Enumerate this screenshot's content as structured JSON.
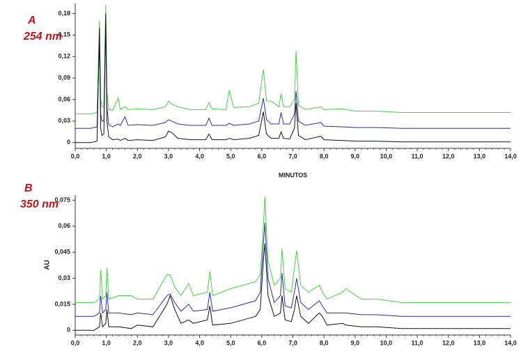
{
  "chart_data": [
    {
      "type": "line",
      "title": "A",
      "subtitle": "254 nm",
      "xlabel": "MINUTOS",
      "x": [
        0,
        0.5,
        0.7,
        0.78,
        0.82,
        0.86,
        0.92,
        0.98,
        1.02,
        1.08,
        1.2,
        1.38,
        1.45,
        1.6,
        1.7,
        2.0,
        2.5,
        2.9,
        3.0,
        3.1,
        3.3,
        3.7,
        4.2,
        4.3,
        4.4,
        4.85,
        4.95,
        5.1,
        5.6,
        5.9,
        6.05,
        6.15,
        6.3,
        6.55,
        6.62,
        6.7,
        6.9,
        7.05,
        7.1,
        7.18,
        7.4,
        7.9,
        8.0,
        8.6,
        9.0,
        9.7,
        10.5,
        12,
        14
      ],
      "series": [
        {
          "color": "#44d044",
          "values": [
            0.04,
            0.04,
            0.042,
            0.17,
            0.06,
            0.05,
            0.05,
            0.192,
            0.07,
            0.046,
            0.045,
            0.062,
            0.046,
            0.05,
            0.046,
            0.047,
            0.046,
            0.05,
            0.058,
            0.054,
            0.05,
            0.046,
            0.046,
            0.056,
            0.047,
            0.046,
            0.073,
            0.049,
            0.05,
            0.055,
            0.102,
            0.058,
            0.058,
            0.05,
            0.068,
            0.05,
            0.05,
            0.06,
            0.128,
            0.052,
            0.046,
            0.05,
            0.046,
            0.047,
            0.044,
            0.044,
            0.042,
            0.042,
            0.042
          ]
        },
        {
          "color": "#2b2ba6",
          "values": [
            0.02,
            0.02,
            0.022,
            0.14,
            0.04,
            0.03,
            0.03,
            0.16,
            0.05,
            0.025,
            0.022,
            0.026,
            0.024,
            0.036,
            0.024,
            0.025,
            0.024,
            0.028,
            0.032,
            0.03,
            0.026,
            0.024,
            0.024,
            0.034,
            0.024,
            0.024,
            0.027,
            0.024,
            0.026,
            0.03,
            0.062,
            0.032,
            0.026,
            0.026,
            0.042,
            0.026,
            0.026,
            0.04,
            0.072,
            0.03,
            0.024,
            0.028,
            0.023,
            0.022,
            0.021,
            0.021,
            0.02,
            0.02,
            0.02
          ]
        },
        {
          "color": "#111111",
          "values": [
            0,
            0,
            0.002,
            0.16,
            0.02,
            0.01,
            0.012,
            0.18,
            0.03,
            0.008,
            0.004,
            0.005,
            0.003,
            0.006,
            0.003,
            0.004,
            0.003,
            0.008,
            0.016,
            0.014,
            0.006,
            0.004,
            0.004,
            0.012,
            0.004,
            0.004,
            0.006,
            0.004,
            0.006,
            0.01,
            0.043,
            0.012,
            0.006,
            0.006,
            0.015,
            0.006,
            0.005,
            0.02,
            0.055,
            0.01,
            0.004,
            0.009,
            0.004,
            0.003,
            0.002,
            0.002,
            0.001,
            0.001,
            0.001
          ]
        }
      ],
      "xlim": [
        0,
        14
      ],
      "xticks": [
        {
          "value": 0,
          "label": "0,0"
        },
        {
          "value": 1,
          "label": "1,0"
        },
        {
          "value": 2,
          "label": "2,0"
        },
        {
          "value": 3,
          "label": "3,0"
        },
        {
          "value": 4,
          "label": "4,0"
        },
        {
          "value": 5,
          "label": "5,0"
        },
        {
          "value": 6,
          "label": "6,0"
        },
        {
          "value": 7,
          "label": "7,0"
        },
        {
          "value": 8,
          "label": "8,0"
        },
        {
          "value": 9,
          "label": "9,0"
        },
        {
          "value": 10,
          "label": "10,0"
        },
        {
          "value": 11,
          "label": "11,0"
        },
        {
          "value": 12,
          "label": "12,0"
        },
        {
          "value": 13,
          "label": "13,0"
        },
        {
          "value": 14,
          "label": "14,0"
        }
      ],
      "ylim": [
        -0.008,
        0.194
      ],
      "yticks": [
        0,
        {
          "value": 0.03,
          "label": "0,03"
        },
        {
          "value": 0.06,
          "label": "0,06"
        },
        {
          "value": 0.09,
          "label": "0,09"
        },
        {
          "value": 0.12,
          "label": "0,12"
        },
        {
          "value": 0.15,
          "label": "0,15"
        },
        {
          "value": 0.18,
          "label": "0,18"
        }
      ]
    },
    {
      "type": "line",
      "title": "B",
      "subtitle": "350 nm",
      "ylabel": "AU",
      "x": [
        0,
        0.6,
        0.78,
        0.82,
        0.88,
        0.98,
        1.02,
        1.08,
        1.4,
        1.8,
        2.0,
        2.5,
        2.95,
        3.05,
        3.2,
        3.4,
        3.65,
        3.8,
        4.25,
        4.33,
        4.42,
        5.0,
        5.4,
        5.8,
        5.95,
        6.05,
        6.1,
        6.2,
        6.4,
        6.6,
        6.65,
        6.75,
        6.95,
        7.05,
        7.12,
        7.25,
        7.5,
        7.85,
        7.95,
        8.1,
        8.6,
        8.7,
        9.2,
        9.7,
        10.5,
        12,
        14
      ],
      "series": [
        {
          "color": "#44d044",
          "values": [
            0.016,
            0.016,
            0.018,
            0.035,
            0.018,
            0.02,
            0.036,
            0.018,
            0.02,
            0.02,
            0.018,
            0.018,
            0.032,
            0.032,
            0.025,
            0.02,
            0.027,
            0.02,
            0.022,
            0.034,
            0.02,
            0.024,
            0.026,
            0.028,
            0.032,
            0.06,
            0.077,
            0.04,
            0.026,
            0.03,
            0.047,
            0.024,
            0.022,
            0.036,
            0.046,
            0.026,
            0.022,
            0.026,
            0.022,
            0.018,
            0.022,
            0.024,
            0.018,
            0.018,
            0.016,
            0.016,
            0.016
          ]
        },
        {
          "color": "#2b2ba6",
          "values": [
            0.008,
            0.008,
            0.01,
            0.02,
            0.01,
            0.012,
            0.022,
            0.01,
            0.01,
            0.009,
            0.01,
            0.009,
            0.02,
            0.021,
            0.016,
            0.011,
            0.015,
            0.011,
            0.012,
            0.022,
            0.011,
            0.013,
            0.015,
            0.017,
            0.022,
            0.05,
            0.062,
            0.03,
            0.016,
            0.02,
            0.033,
            0.014,
            0.013,
            0.022,
            0.03,
            0.016,
            0.012,
            0.017,
            0.014,
            0.01,
            0.01,
            0.01,
            0.009,
            0.009,
            0.008,
            0.008,
            0.008
          ]
        },
        {
          "color": "#111111",
          "values": [
            0,
            0,
            0.002,
            0.01,
            0.002,
            0.004,
            0.012,
            0.002,
            0.002,
            0.001,
            0.003,
            0.002,
            0.015,
            0.02,
            0.012,
            0.004,
            0.006,
            0.004,
            0.006,
            0.014,
            0.003,
            0.004,
            0.006,
            0.008,
            0.012,
            0.04,
            0.05,
            0.02,
            0.008,
            0.01,
            0.02,
            0.006,
            0.005,
            0.012,
            0.02,
            0.008,
            0.004,
            0.01,
            0.008,
            0.003,
            0.004,
            0.003,
            0.002,
            0.002,
            0.001,
            0.001,
            0.001
          ]
        }
      ],
      "xlim": [
        0,
        14
      ],
      "xticks": [
        {
          "value": 0,
          "label": "0,0"
        },
        {
          "value": 1,
          "label": "1,0"
        },
        {
          "value": 2,
          "label": "2,0"
        },
        {
          "value": 3,
          "label": "3,0"
        },
        {
          "value": 4,
          "label": "4,0"
        },
        {
          "value": 5,
          "label": "5,0"
        },
        {
          "value": 6,
          "label": "6,0"
        },
        {
          "value": 7,
          "label": "7,0"
        },
        {
          "value": 8,
          "label": "8,0"
        },
        {
          "value": 9,
          "label": "9,0"
        },
        {
          "value": 10,
          "label": "10,0"
        },
        {
          "value": 11,
          "label": "11,0"
        },
        {
          "value": 12,
          "label": "12,0"
        },
        {
          "value": 13,
          "label": "13,0"
        },
        {
          "value": 14,
          "label": "14,0"
        }
      ],
      "ylim": [
        -0.0027,
        0.078
      ],
      "yticks": [
        0,
        {
          "value": 0.015,
          "label": "0,015"
        },
        {
          "value": 0.03,
          "label": "0,03"
        },
        {
          "value": 0.045,
          "label": "0,045"
        },
        {
          "value": 0.06,
          "label": "0,06"
        },
        {
          "value": 0.075,
          "label": "0,075"
        }
      ]
    }
  ]
}
